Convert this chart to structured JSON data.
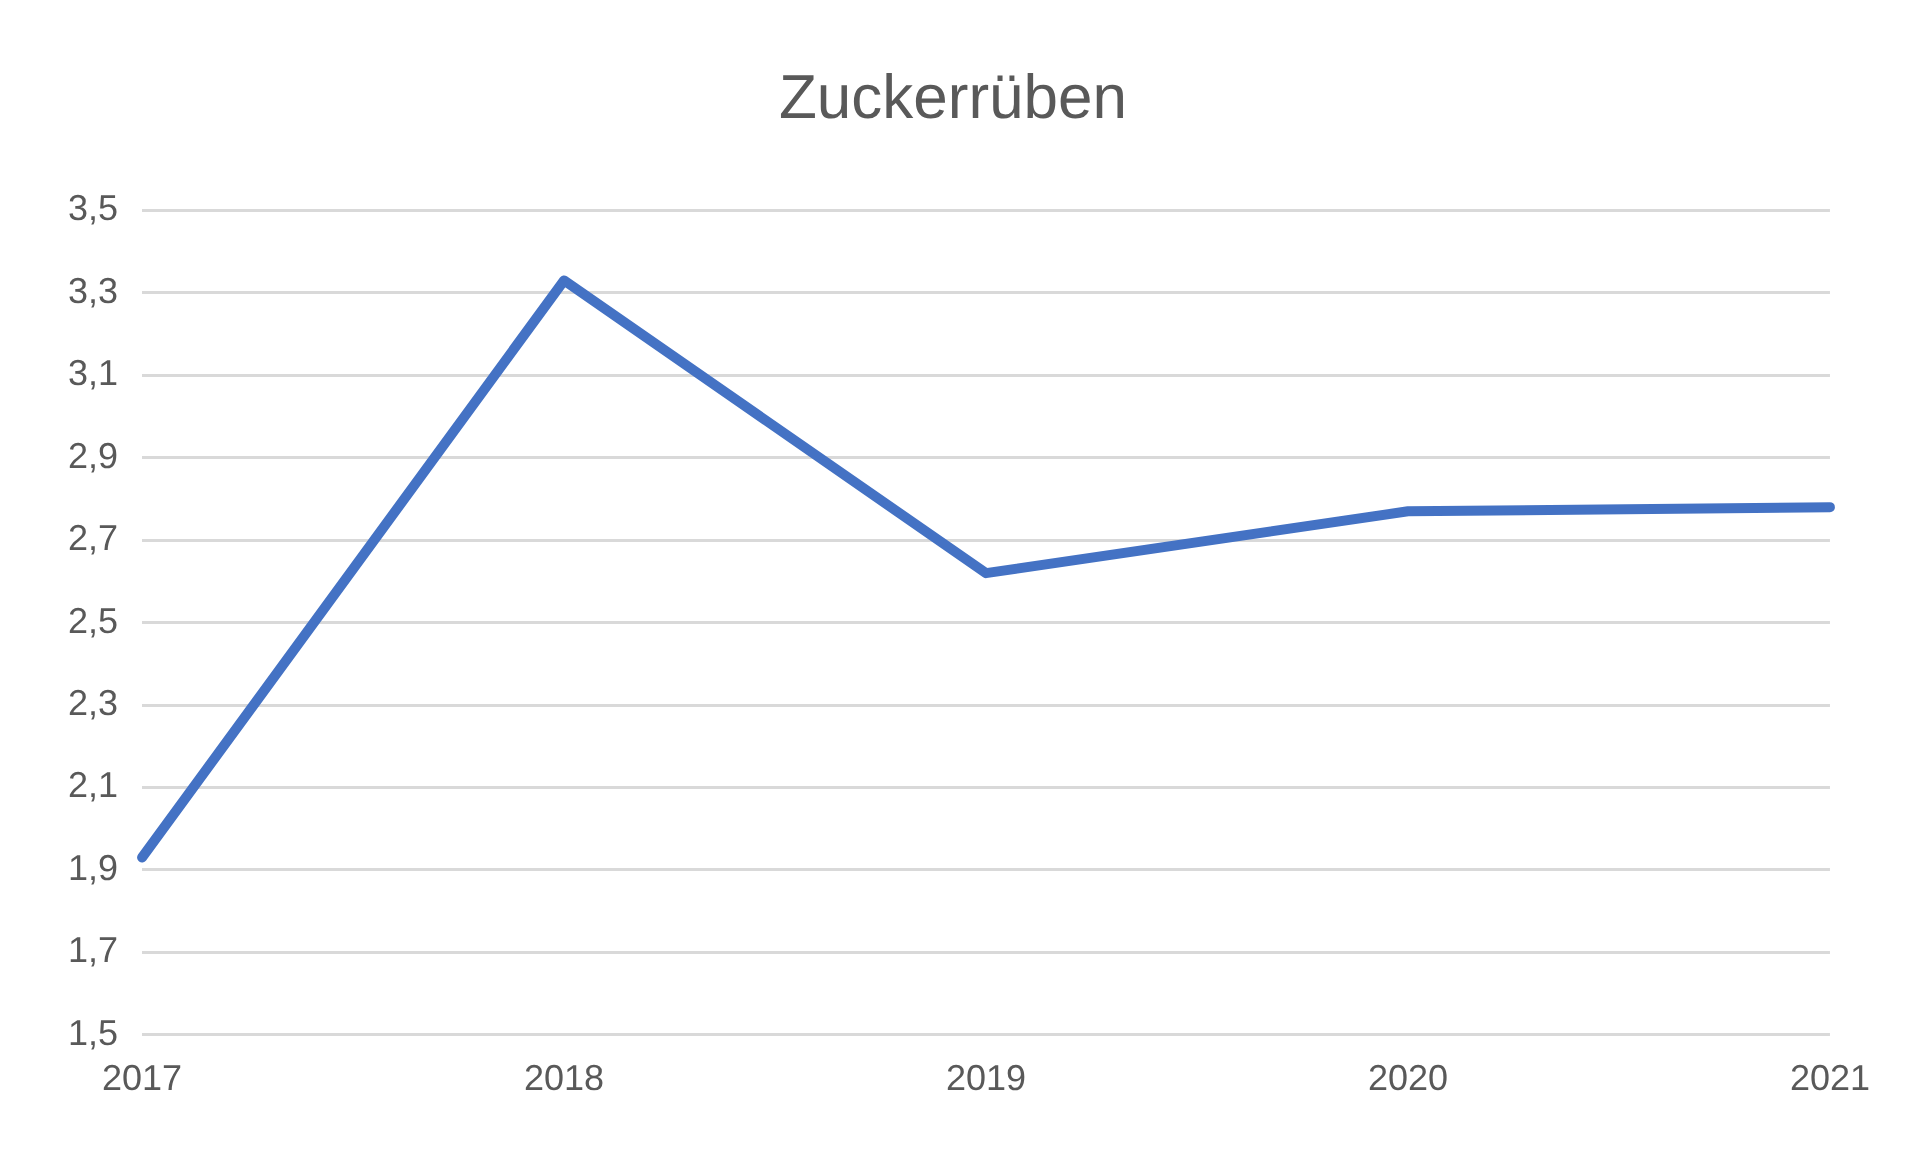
{
  "chart_data": {
    "type": "line",
    "title": "Zuckerrüben",
    "categories": [
      "2017",
      "2018",
      "2019",
      "2020",
      "2021"
    ],
    "series": [
      {
        "color": "#4472c4",
        "values": [
          1.93,
          3.33,
          2.62,
          2.77,
          2.78
        ]
      }
    ],
    "ylim": [
      1.5,
      3.5
    ],
    "yticks": [
      {
        "value": 1.5,
        "label": "1,5"
      },
      {
        "value": 1.7,
        "label": "1,7"
      },
      {
        "value": 1.9,
        "label": "1,9"
      },
      {
        "value": 2.1,
        "label": "2,1"
      },
      {
        "value": 2.3,
        "label": "2,3"
      },
      {
        "value": 2.5,
        "label": "2,5"
      },
      {
        "value": 2.7,
        "label": "2,7"
      },
      {
        "value": 2.9,
        "label": "2,9"
      },
      {
        "value": 3.1,
        "label": "3,1"
      },
      {
        "value": 3.3,
        "label": "3,3"
      },
      {
        "value": 3.5,
        "label": "3,5"
      }
    ],
    "grid": "y",
    "legend": false,
    "marker": "none",
    "line_style": "solid"
  }
}
